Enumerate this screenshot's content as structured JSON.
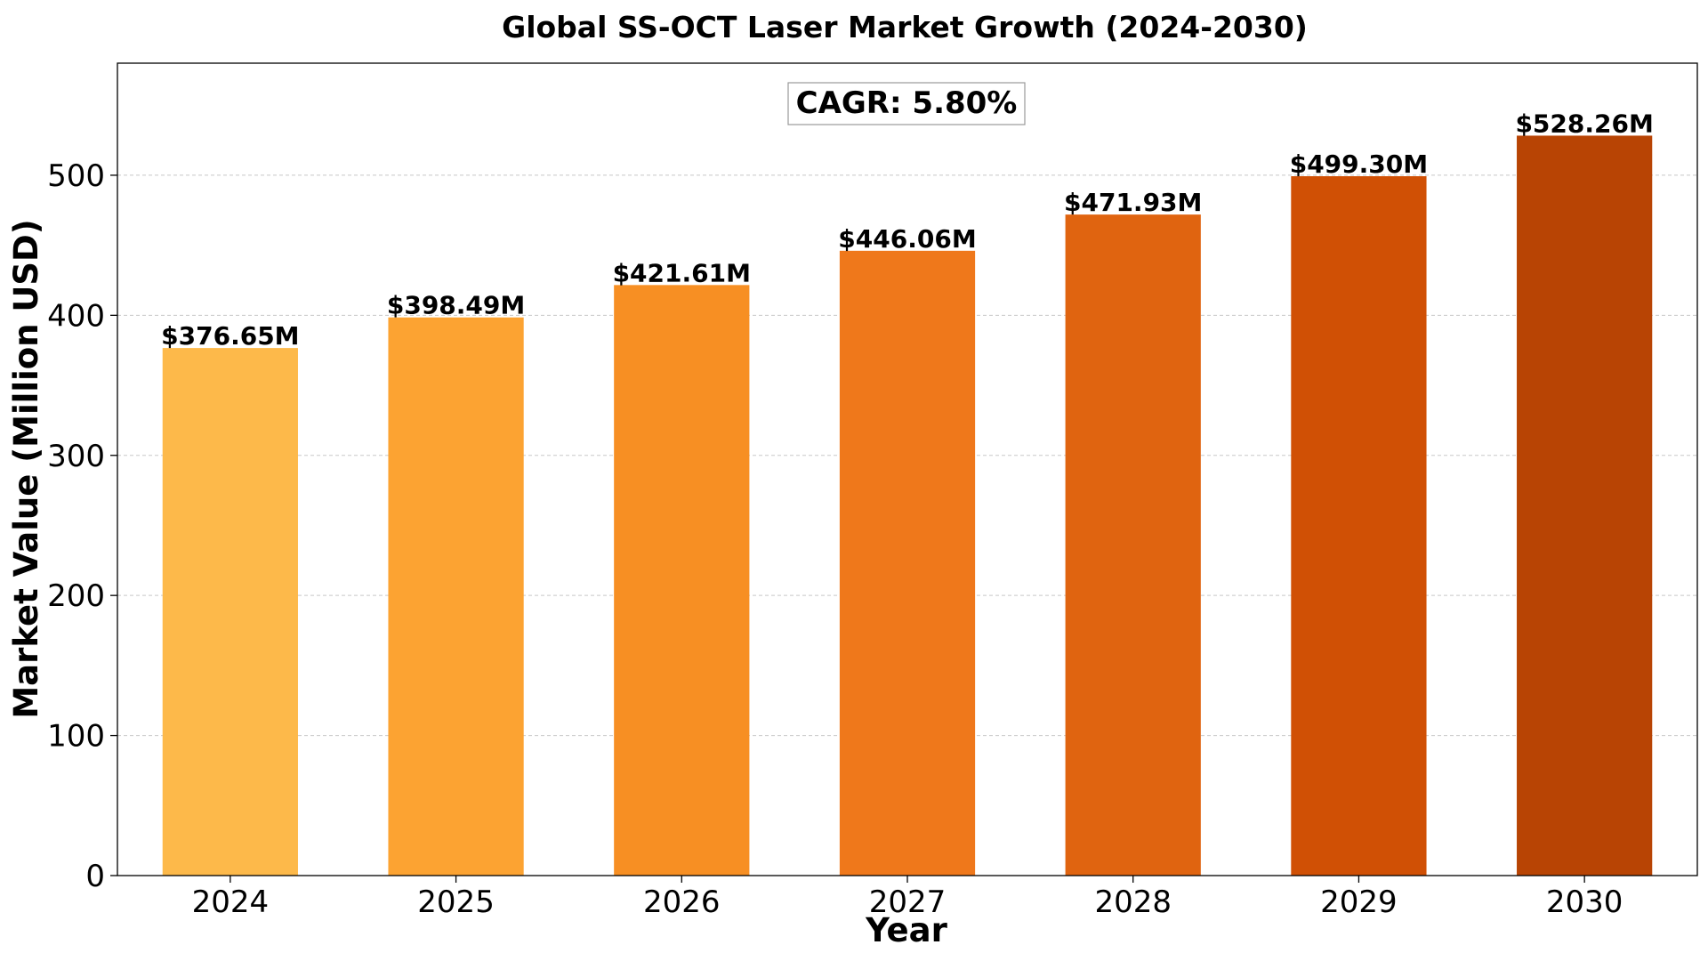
{
  "chart_data": {
    "type": "bar",
    "title": "Global SS-OCT Laser Market Growth (2024-2030)",
    "xlabel": "Year",
    "ylabel": "Market Value (Million USD)",
    "categories": [
      "2024",
      "2025",
      "2026",
      "2027",
      "2028",
      "2029",
      "2030"
    ],
    "values": [
      376.65,
      398.49,
      421.61,
      446.06,
      471.93,
      499.3,
      528.26
    ],
    "value_labels": [
      "$376.65M",
      "$398.49M",
      "$421.61M",
      "$446.06M",
      "$471.93M",
      "$499.30M",
      "$528.26M"
    ],
    "colors": [
      "#FDB94A",
      "#FCA332",
      "#F78F23",
      "#EF781B",
      "#E06410",
      "#D05005",
      "#B84404"
    ],
    "ylim": [
      0,
      580
    ],
    "yticks": [
      0,
      100,
      200,
      300,
      400,
      500
    ],
    "grid": "y-dashed",
    "annotation": "CAGR: 5.80%"
  }
}
